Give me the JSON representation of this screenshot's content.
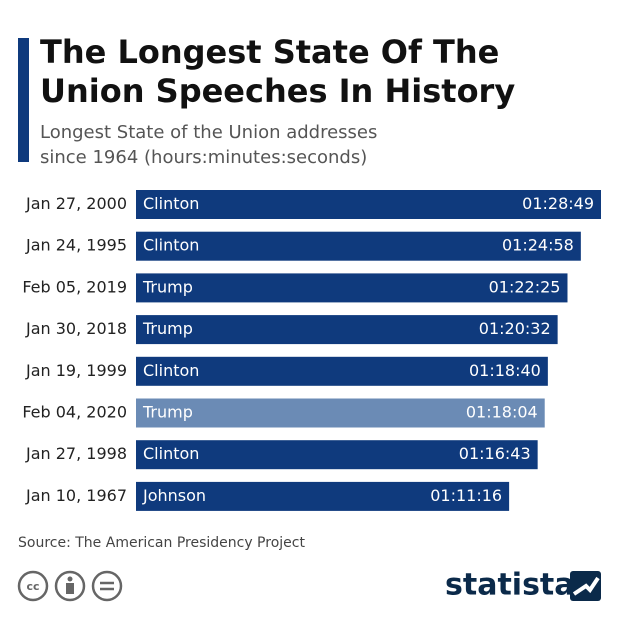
{
  "chart_data": {
    "type": "bar",
    "title": "The Longest State Of The Union Speeches In History",
    "title_lines": [
      "The Longest State Of The",
      "Union Speeches In History"
    ],
    "subtitle_lines": [
      "Longest State of the Union addresses",
      "since 1964 (hours:minutes:seconds)"
    ],
    "categories": [
      "Jan 27, 2000",
      "Jan 24, 1995",
      "Feb 05, 2019",
      "Jan 30, 2018",
      "Jan 19, 1999",
      "Feb 04, 2020",
      "Jan 27, 1998",
      "Jan 10, 1967"
    ],
    "presidents": [
      "Clinton",
      "Clinton",
      "Trump",
      "Trump",
      "Clinton",
      "Trump",
      "Clinton",
      "Johnson"
    ],
    "values": [
      5329,
      5098,
      4945,
      4832,
      4720,
      4684,
      4603,
      4276
    ],
    "value_labels": [
      "01:28:49",
      "01:24:58",
      "01:22:25",
      "01:20:32",
      "01:18:40",
      "01:18:04",
      "01:16:43",
      "01:11:16"
    ],
    "colors": [
      "#0f3a7d",
      "#0f3a7d",
      "#0f3a7d",
      "#0f3a7d",
      "#0f3a7d",
      "#6b8bb5",
      "#0f3a7d",
      "#0f3a7d"
    ],
    "source": "Source: The American Presidency Project",
    "brand": "statista"
  }
}
